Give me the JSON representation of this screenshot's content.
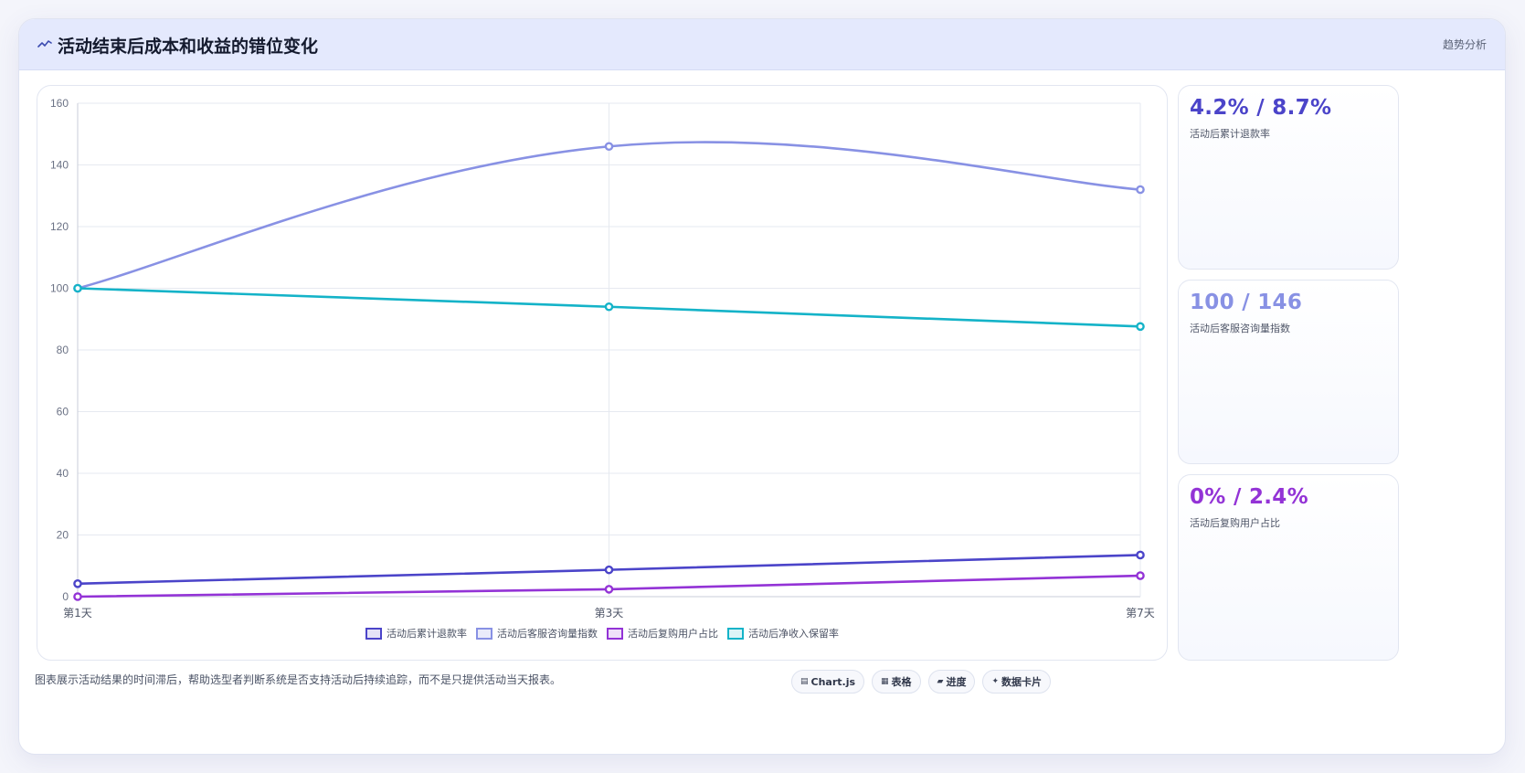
{
  "header": {
    "title": "活动结束后成本和收益的错位变化",
    "tag": "趋势分析"
  },
  "chart_data": {
    "type": "line",
    "categories": [
      "第1天",
      "第3天",
      "第7天"
    ],
    "x_positions": [
      1,
      3,
      7
    ],
    "ylim": [
      0,
      160
    ],
    "yticks": [
      0,
      20,
      40,
      60,
      80,
      100,
      120,
      140,
      160
    ],
    "grid": true,
    "legend": "bottom",
    "title": "",
    "xlabel": "",
    "ylabel": "",
    "series": [
      {
        "name": "活动后累计退款率",
        "values": [
          4.2,
          8.7,
          13.5
        ],
        "color": "#4b44c9",
        "smooth": false
      },
      {
        "name": "活动后客服咨询量指数",
        "values": [
          100,
          146,
          132
        ],
        "color": "#8891e4",
        "smooth": true
      },
      {
        "name": "活动后复购用户占比",
        "values": [
          0,
          2.4,
          6.8
        ],
        "color": "#9333d6",
        "smooth": false
      },
      {
        "name": "活动后净收入保留率",
        "values": [
          100,
          94,
          87.6
        ],
        "color": "#14b3c8",
        "smooth": false
      }
    ]
  },
  "stats": [
    {
      "value": "4.2% / 8.7%",
      "label": "活动后累计退款率",
      "color": "#4b44c9"
    },
    {
      "value": "100 / 146",
      "label": "活动后客服咨询量指数",
      "color": "#8891e4"
    },
    {
      "value": "0% / 2.4%",
      "label": "活动后复购用户占比",
      "color": "#9333d6"
    }
  ],
  "footer": {
    "note": "图表展示活动结果的时间滞后，帮助选型者判断系统是否支持活动后持续追踪，而不是只提供活动当天报表。",
    "pills": [
      {
        "icon": "▤",
        "label": "Chart.js"
      },
      {
        "icon": "▦",
        "label": "表格"
      },
      {
        "icon": "▰",
        "label": "进度"
      },
      {
        "icon": "✦",
        "label": "数据卡片"
      }
    ]
  }
}
